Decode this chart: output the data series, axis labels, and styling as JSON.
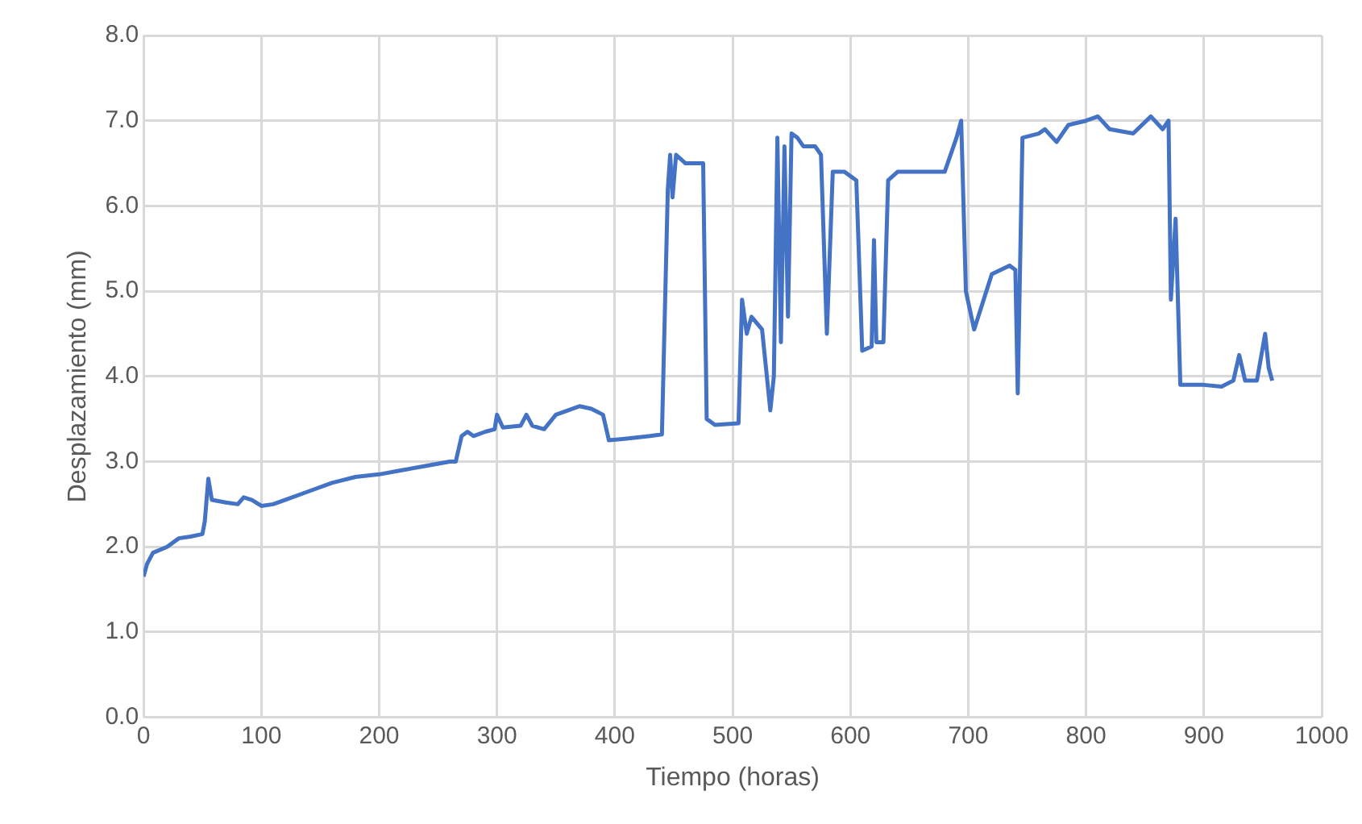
{
  "chart_data": {
    "type": "line",
    "xlabel": "Tiempo (horas)",
    "ylabel": "Desplazamiento (mm)",
    "x": [
      0,
      3,
      8,
      20,
      30,
      40,
      50,
      52,
      55,
      58,
      70,
      80,
      85,
      92,
      100,
      110,
      120,
      140,
      160,
      180,
      200,
      220,
      240,
      260,
      265,
      270,
      275,
      280,
      290,
      298,
      300,
      305,
      320,
      325,
      330,
      340,
      350,
      360,
      370,
      380,
      390,
      395,
      410,
      430,
      440,
      445,
      447,
      449,
      452,
      460,
      475,
      478,
      485,
      505,
      508,
      512,
      516,
      525,
      532,
      535,
      538,
      541,
      544,
      547,
      550,
      555,
      560,
      570,
      575,
      580,
      585,
      595,
      605,
      610,
      618,
      620,
      622,
      628,
      632,
      640,
      660,
      680,
      690,
      694,
      698,
      705,
      720,
      735,
      740,
      742,
      746,
      760,
      765,
      775,
      785,
      800,
      810,
      820,
      840,
      855,
      865,
      870,
      872,
      876,
      880,
      900,
      915,
      925,
      930,
      935,
      945,
      952,
      955,
      958
    ],
    "series": [
      {
        "color": "#4472c4",
        "values": [
          1.65,
          1.8,
          1.93,
          2.0,
          2.1,
          2.12,
          2.15,
          2.3,
          2.8,
          2.55,
          2.52,
          2.5,
          2.58,
          2.55,
          2.48,
          2.5,
          2.55,
          2.65,
          2.75,
          2.82,
          2.85,
          2.9,
          2.95,
          3.0,
          3.0,
          3.3,
          3.35,
          3.3,
          3.35,
          3.38,
          3.55,
          3.4,
          3.42,
          3.55,
          3.42,
          3.38,
          3.55,
          3.6,
          3.65,
          3.62,
          3.55,
          3.25,
          3.27,
          3.3,
          3.32,
          6.2,
          6.6,
          6.1,
          6.6,
          6.5,
          6.5,
          3.5,
          3.43,
          3.45,
          4.9,
          4.5,
          4.7,
          4.55,
          3.6,
          4.0,
          6.8,
          4.4,
          6.7,
          4.7,
          6.85,
          6.8,
          6.7,
          6.7,
          6.6,
          4.5,
          6.4,
          6.4,
          6.3,
          4.3,
          4.35,
          5.6,
          4.4,
          4.4,
          6.3,
          6.4,
          6.4,
          6.4,
          6.8,
          7.0,
          5.0,
          4.55,
          5.2,
          5.3,
          5.25,
          3.8,
          6.8,
          6.85,
          6.9,
          6.75,
          6.95,
          7.0,
          7.05,
          6.9,
          6.85,
          7.05,
          6.9,
          7.0,
          4.9,
          5.85,
          3.9,
          3.9,
          3.88,
          3.95,
          4.25,
          3.95,
          3.95,
          4.5,
          4.1,
          3.95
        ]
      }
    ],
    "xlim": [
      0,
      1000
    ],
    "xticks": [
      0,
      100,
      200,
      300,
      400,
      500,
      600,
      700,
      800,
      900,
      1000
    ],
    "ylim": [
      0,
      8
    ],
    "yticks": [
      {
        "value": 0,
        "label": "0.0"
      },
      {
        "value": 1,
        "label": "1.0"
      },
      {
        "value": 2,
        "label": "2.0"
      },
      {
        "value": 3,
        "label": "3.0"
      },
      {
        "value": 4,
        "label": "4.0"
      },
      {
        "value": 5,
        "label": "5.0"
      },
      {
        "value": 6,
        "label": "6.0"
      },
      {
        "value": 7,
        "label": "7.0"
      },
      {
        "value": 8,
        "label": "8.0"
      }
    ],
    "grid": true,
    "legend": false,
    "marker": "none",
    "line_style": "solid"
  }
}
